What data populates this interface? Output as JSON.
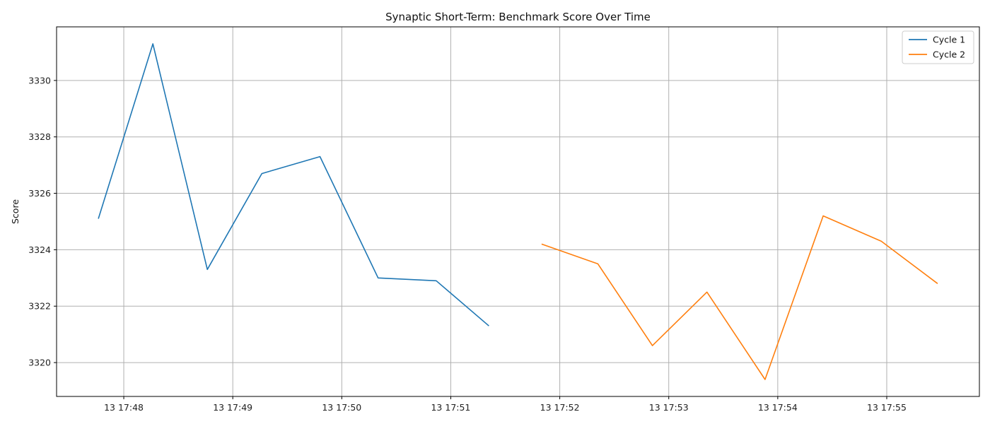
{
  "chart_data": {
    "type": "line",
    "title": "Synaptic Short-Term: Benchmark Score Over Time",
    "xlabel": "",
    "ylabel": "Score",
    "xlim": [
      "13 17:47:23",
      "13 17:55:51"
    ],
    "ylim": [
      3318.8,
      3331.9
    ],
    "x_ticks": [
      "13 17:48",
      "13 17:49",
      "13 17:50",
      "13 17:51",
      "13 17:52",
      "13 17:53",
      "13 17:54",
      "13 17:55"
    ],
    "y_ticks": [
      3320,
      3322,
      3324,
      3326,
      3328,
      3330
    ],
    "grid": true,
    "legend_position": "top-right",
    "series": [
      {
        "name": "Cycle 1",
        "color": "#1f77b4",
        "points": [
          {
            "x": "13 17:47:46",
            "y": 3325.1
          },
          {
            "x": "13 17:48:16",
            "y": 3331.3
          },
          {
            "x": "13 17:48:46",
            "y": 3323.3
          },
          {
            "x": "13 17:49:16",
            "y": 3326.7
          },
          {
            "x": "13 17:49:48",
            "y": 3327.3
          },
          {
            "x": "13 17:50:20",
            "y": 3323.0
          },
          {
            "x": "13 17:50:52",
            "y": 3322.9
          },
          {
            "x": "13 17:51:21",
            "y": 3321.3
          }
        ]
      },
      {
        "name": "Cycle 2",
        "color": "#ff7f0e",
        "points": [
          {
            "x": "13 17:51:50",
            "y": 3324.2
          },
          {
            "x": "13 17:52:21",
            "y": 3323.5
          },
          {
            "x": "13 17:52:51",
            "y": 3320.6
          },
          {
            "x": "13 17:53:21",
            "y": 3322.5
          },
          {
            "x": "13 17:53:53",
            "y": 3319.4
          },
          {
            "x": "13 17:54:25",
            "y": 3325.2
          },
          {
            "x": "13 17:54:57",
            "y": 3324.3
          },
          {
            "x": "13 17:55:28",
            "y": 3322.8
          }
        ]
      }
    ]
  }
}
